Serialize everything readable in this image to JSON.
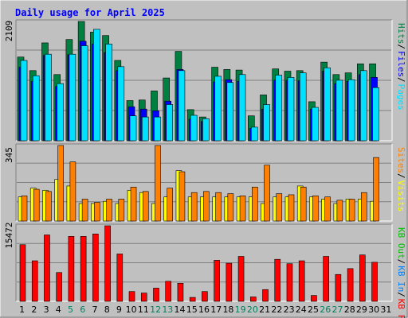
{
  "chart_data": [
    {
      "type": "bar",
      "panel": "pages-files-hits",
      "title": "Daily usage for April 2025",
      "ymax_label": "2109",
      "ymax": 2109,
      "legend": [
        {
          "label": "Pages",
          "color": "#00E0FF"
        },
        {
          "label": "Files",
          "color": "#0000FF"
        },
        {
          "label": "Hits",
          "color": "#008040"
        }
      ],
      "legend_sep": "/",
      "categories": [
        "1",
        "2",
        "3",
        "4",
        "5",
        "6",
        "7",
        "8",
        "9",
        "10",
        "11",
        "12",
        "13",
        "14",
        "15",
        "16",
        "17",
        "18",
        "19",
        "20",
        "21",
        "22",
        "23",
        "24",
        "25",
        "26",
        "27",
        "28",
        "29",
        "30",
        "31"
      ],
      "weekend_days": [
        5,
        6,
        12,
        13,
        19,
        20,
        26,
        27
      ],
      "series": [
        {
          "name": "Hits",
          "color": "#008040",
          "values": [
            1480,
            1240,
            1730,
            1170,
            1790,
            2109,
            1920,
            1860,
            1420,
            710,
            720,
            880,
            1110,
            1580,
            550,
            420,
            1300,
            1260,
            1250,
            440,
            810,
            1270,
            1230,
            1240,
            690,
            1390,
            1170,
            1200,
            1360,
            1360,
            null
          ]
        },
        {
          "name": "Files",
          "color": "#0000FF",
          "values": [
            1300,
            1050,
            1510,
            960,
            1520,
            1760,
            1710,
            1560,
            1240,
            600,
            560,
            530,
            700,
            1260,
            380,
            340,
            1040,
            1080,
            1050,
            220,
            560,
            1070,
            1070,
            1060,
            560,
            1230,
            1010,
            1050,
            1170,
            1120,
            null
          ]
        },
        {
          "name": "Pages",
          "color": "#00E0FF",
          "values": [
            1420,
            1150,
            1530,
            1010,
            1530,
            1680,
            1970,
            1710,
            1310,
            440,
            420,
            420,
            640,
            1240,
            450,
            390,
            1140,
            1030,
            1170,
            240,
            640,
            1160,
            1120,
            1200,
            590,
            1290,
            1070,
            1080,
            1240,
            940,
            null
          ]
        }
      ]
    },
    {
      "type": "bar",
      "panel": "visits-sites",
      "ymax_label": "345",
      "ymax": 345,
      "legend": [
        {
          "label": "Visits",
          "color": "#FFFF00"
        },
        {
          "label": "Sites",
          "color": "#FF8000"
        }
      ],
      "legend_sep": "/",
      "categories": [
        "1",
        "2",
        "3",
        "4",
        "5",
        "6",
        "7",
        "8",
        "9",
        "10",
        "11",
        "12",
        "13",
        "14",
        "15",
        "16",
        "17",
        "18",
        "19",
        "20",
        "21",
        "22",
        "23",
        "24",
        "25",
        "26",
        "27",
        "28",
        "29",
        "30",
        "31"
      ],
      "series": [
        {
          "name": "Visits",
          "color": "#FFFF00",
          "values": [
            110,
            150,
            140,
            190,
            160,
            80,
            80,
            90,
            80,
            140,
            130,
            80,
            110,
            230,
            110,
            110,
            110,
            110,
            110,
            110,
            80,
            110,
            110,
            160,
            110,
            100,
            80,
            100,
            100,
            90,
            null
          ]
        },
        {
          "name": "Sites",
          "color": "#FF8000",
          "values": [
            115,
            145,
            135,
            345,
            270,
            100,
            85,
            100,
            100,
            155,
            135,
            345,
            150,
            225,
            130,
            135,
            130,
            125,
            115,
            155,
            255,
            125,
            120,
            155,
            115,
            110,
            95,
            100,
            130,
            290,
            null
          ]
        }
      ]
    },
    {
      "type": "bar",
      "panel": "kb-in-out",
      "ymax_label": "15472",
      "ymax": 15472,
      "legend": [
        {
          "label": "KB F",
          "color": "#FF0000"
        },
        {
          "label": "KB In",
          "color": "#0080FF"
        },
        {
          "label": "KB Out",
          "color": "#00C000"
        }
      ],
      "legend_sep": "/",
      "categories": [
        "1",
        "2",
        "3",
        "4",
        "5",
        "6",
        "7",
        "8",
        "9",
        "10",
        "11",
        "12",
        "13",
        "14",
        "15",
        "16",
        "17",
        "18",
        "19",
        "20",
        "21",
        "22",
        "23",
        "24",
        "25",
        "26",
        "27",
        "28",
        "29",
        "30",
        "31"
      ],
      "series": [
        {
          "name": "KB F",
          "color": "#FF0000",
          "values": [
            11600,
            8300,
            13600,
            5900,
            13300,
            13300,
            13800,
            15472,
            9700,
            2000,
            1700,
            2700,
            4100,
            3700,
            800,
            2000,
            8400,
            7800,
            9200,
            900,
            2400,
            8600,
            7700,
            8300,
            1200,
            9200,
            5500,
            6700,
            9500,
            8000,
            null
          ]
        }
      ]
    }
  ]
}
